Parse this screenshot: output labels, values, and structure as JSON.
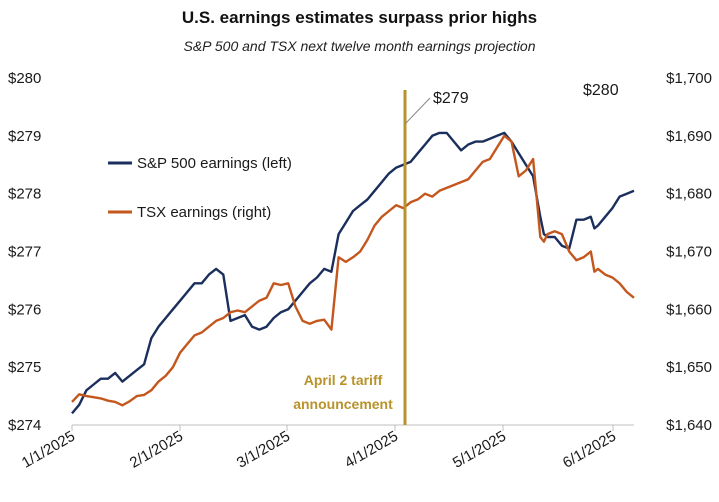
{
  "chart_data": {
    "type": "line",
    "title": "U.S. earnings estimates surpass prior highs",
    "subtitle": "S&P 500 and TSX next twelve month earnings projection",
    "x_ticks": [
      "1/1/2025",
      "2/1/2025",
      "3/1/2025",
      "4/1/2025",
      "5/1/2025",
      "6/1/2025"
    ],
    "x_domain": [
      0,
      156
    ],
    "y_left": {
      "ylim": [
        274,
        280
      ],
      "ticks": [
        "$274",
        "$275",
        "$276",
        "$277",
        "$278",
        "$279",
        "$280"
      ]
    },
    "y_right": {
      "ylim": [
        1640,
        1700
      ],
      "ticks": [
        "$1,640",
        "$1,650",
        "$1,660",
        "$1,670",
        "$1,680",
        "$1,690",
        "$1,700"
      ]
    },
    "legend": {
      "placement": "left-middle"
    },
    "series": [
      {
        "name": "S&P 500 earnings (left)",
        "axis": "left",
        "color": "#1b2f5c",
        "points": [
          [
            0,
            274.2
          ],
          [
            2,
            274.35
          ],
          [
            4,
            274.6
          ],
          [
            6,
            274.7
          ],
          [
            8,
            274.8
          ],
          [
            10,
            274.8
          ],
          [
            12,
            274.9
          ],
          [
            14,
            274.75
          ],
          [
            16,
            274.85
          ],
          [
            18,
            274.95
          ],
          [
            20,
            275.05
          ],
          [
            22,
            275.5
          ],
          [
            24,
            275.7
          ],
          [
            26,
            275.85
          ],
          [
            28,
            276.0
          ],
          [
            30,
            276.15
          ],
          [
            32,
            276.3
          ],
          [
            34,
            276.45
          ],
          [
            36,
            276.45
          ],
          [
            38,
            276.6
          ],
          [
            40,
            276.7
          ],
          [
            42,
            276.6
          ],
          [
            44,
            275.8
          ],
          [
            46,
            275.85
          ],
          [
            48,
            275.9
          ],
          [
            50,
            275.7
          ],
          [
            52,
            275.65
          ],
          [
            54,
            275.7
          ],
          [
            56,
            275.85
          ],
          [
            58,
            275.95
          ],
          [
            60,
            276.0
          ],
          [
            62,
            276.15
          ],
          [
            64,
            276.3
          ],
          [
            66,
            276.45
          ],
          [
            68,
            276.55
          ],
          [
            70,
            276.7
          ],
          [
            72,
            276.65
          ],
          [
            74,
            277.3
          ],
          [
            76,
            277.5
          ],
          [
            78,
            277.7
          ],
          [
            80,
            277.8
          ],
          [
            82,
            277.9
          ],
          [
            84,
            278.05
          ],
          [
            86,
            278.2
          ],
          [
            88,
            278.35
          ],
          [
            90,
            278.45
          ],
          [
            92,
            278.5
          ],
          [
            94,
            278.55
          ],
          [
            96,
            278.7
          ],
          [
            98,
            278.85
          ],
          [
            100,
            279.0
          ],
          [
            102,
            279.05
          ],
          [
            104,
            279.05
          ],
          [
            106,
            278.9
          ],
          [
            108,
            278.75
          ],
          [
            110,
            278.85
          ],
          [
            112,
            278.9
          ],
          [
            114,
            278.9
          ],
          [
            116,
            278.95
          ],
          [
            118,
            279.0
          ],
          [
            120,
            279.05
          ],
          [
            122,
            278.9
          ],
          [
            124,
            278.7
          ],
          [
            126,
            278.5
          ],
          [
            128,
            278.3
          ],
          [
            130,
            277.6
          ],
          [
            131,
            277.3
          ],
          [
            132,
            277.25
          ],
          [
            134,
            277.25
          ],
          [
            136,
            277.1
          ],
          [
            138,
            277.05
          ],
          [
            140,
            277.55
          ],
          [
            142,
            277.55
          ],
          [
            144,
            277.6
          ],
          [
            145,
            277.4
          ],
          [
            146,
            277.45
          ],
          [
            148,
            277.6
          ],
          [
            150,
            277.75
          ],
          [
            152,
            277.95
          ],
          [
            154,
            278.0
          ],
          [
            156,
            278.05
          ]
        ]
      },
      {
        "name": "TSX earnings (right)",
        "axis": "right",
        "color": "#c4571d",
        "points": [
          [
            0,
            1644
          ],
          [
            2,
            1645.3
          ],
          [
            4,
            1645
          ],
          [
            6,
            1644.8
          ],
          [
            8,
            1644.6
          ],
          [
            10,
            1644.2
          ],
          [
            12,
            1644
          ],
          [
            14,
            1643.4
          ],
          [
            16,
            1644.1
          ],
          [
            18,
            1645
          ],
          [
            20,
            1645.2
          ],
          [
            22,
            1646
          ],
          [
            24,
            1647.5
          ],
          [
            26,
            1648.5
          ],
          [
            28,
            1650
          ],
          [
            30,
            1652.5
          ],
          [
            32,
            1654
          ],
          [
            34,
            1655.5
          ],
          [
            36,
            1656
          ],
          [
            38,
            1657
          ],
          [
            40,
            1658
          ],
          [
            42,
            1658.5
          ],
          [
            44,
            1659.5
          ],
          [
            46,
            1659.8
          ],
          [
            48,
            1659.5
          ],
          [
            50,
            1660.5
          ],
          [
            52,
            1661.5
          ],
          [
            54,
            1662
          ],
          [
            56,
            1664.5
          ],
          [
            58,
            1664.2
          ],
          [
            60,
            1664.5
          ],
          [
            62,
            1660.5
          ],
          [
            64,
            1658
          ],
          [
            66,
            1657.5
          ],
          [
            68,
            1658
          ],
          [
            70,
            1658.2
          ],
          [
            72,
            1656.5
          ],
          [
            74,
            1669
          ],
          [
            76,
            1668.2
          ],
          [
            78,
            1669
          ],
          [
            80,
            1670
          ],
          [
            82,
            1672
          ],
          [
            84,
            1674.5
          ],
          [
            86,
            1676
          ],
          [
            88,
            1677
          ],
          [
            90,
            1678
          ],
          [
            92,
            1677.5
          ],
          [
            94,
            1678.5
          ],
          [
            96,
            1679
          ],
          [
            98,
            1680
          ],
          [
            100,
            1679.5
          ],
          [
            102,
            1680.5
          ],
          [
            104,
            1681
          ],
          [
            106,
            1681.5
          ],
          [
            108,
            1682
          ],
          [
            110,
            1682.5
          ],
          [
            112,
            1684
          ],
          [
            114,
            1685.5
          ],
          [
            116,
            1686
          ],
          [
            118,
            1688
          ],
          [
            120,
            1690
          ],
          [
            122,
            1689
          ],
          [
            124,
            1683
          ],
          [
            126,
            1684
          ],
          [
            128,
            1686
          ],
          [
            130,
            1672.5
          ],
          [
            131,
            1671.7
          ],
          [
            132,
            1673
          ],
          [
            134,
            1673.5
          ],
          [
            136,
            1673
          ],
          [
            138,
            1670
          ],
          [
            140,
            1668.5
          ],
          [
            142,
            1669
          ],
          [
            144,
            1670
          ],
          [
            145,
            1666.5
          ],
          [
            146,
            1667
          ],
          [
            148,
            1666
          ],
          [
            150,
            1665.5
          ],
          [
            152,
            1664.5
          ],
          [
            154,
            1663
          ],
          [
            156,
            1662
          ]
        ]
      }
    ],
    "annotations": [
      {
        "label": "$279",
        "series": "S&P 500 earnings (left)"
      },
      {
        "label": "$280",
        "series": "S&P 500 earnings (left)"
      },
      {
        "label": "April 2 tariff announcement"
      }
    ]
  }
}
